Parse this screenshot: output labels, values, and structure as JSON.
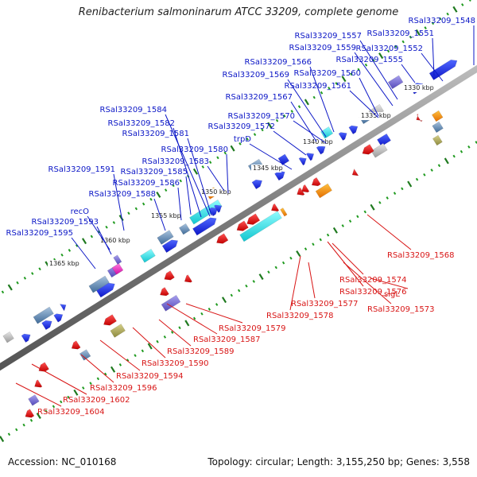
{
  "title": "Renibacterium salmoninarum ATCC 33209, complete genome",
  "footer": {
    "accession": "Accession: NC_010168",
    "summary": "Topology: circular; Length: 3,155,250 bp; Genes: 3,558"
  },
  "colors": {
    "forward_label": "#0b16c6",
    "reverse_label": "#d81515",
    "backbone": "#7d7d7d",
    "tick_major": "#1f7a1f",
    "tick_minor": "#1f9a1f"
  },
  "scale_labels": [
    "1330 kbp",
    "1335 kbp",
    "1340 kbp",
    "1345 kbp",
    "1350 kbp",
    "1355 kbp",
    "1360 kbp",
    "1365 kbp"
  ],
  "forward_labels": [
    "RSal33209_1548",
    "RSal33209_1551",
    "RSal33209_1557",
    "RSal33209_1559",
    "RSal33209_1552",
    "RSal33209_1555",
    "RSal33209_1566",
    "RSal33209_1560",
    "RSal33209_1569",
    "RSal33209_1561",
    "RSal33209_1567",
    "RSal33209_1584",
    "RSal33209_1570",
    "RSal33209_1582",
    "RSal33209_1572",
    "RSal33209_1581",
    "trpD",
    "RSal33209_1580",
    "RSal33209_1583",
    "RSal33209_1591",
    "RSal33209_1585",
    "RSal33209_1586",
    "RSal33209_1588",
    "recO",
    "RSal33209_1593",
    "RSal33209_1595"
  ],
  "reverse_labels": [
    "RSal33209_1568",
    "RSal33209_1574",
    "RSal33209_1576",
    "sigL",
    "RSal33209_1577",
    "RSal33209_1573",
    "RSal33209_1578",
    "RSal33209_1579",
    "RSal33209_1587",
    "RSal33209_1589",
    "RSal33209_1590",
    "RSal33209_1594",
    "RSal33209_1596",
    "RSal33209_1602",
    "RSal33209_1604"
  ]
}
